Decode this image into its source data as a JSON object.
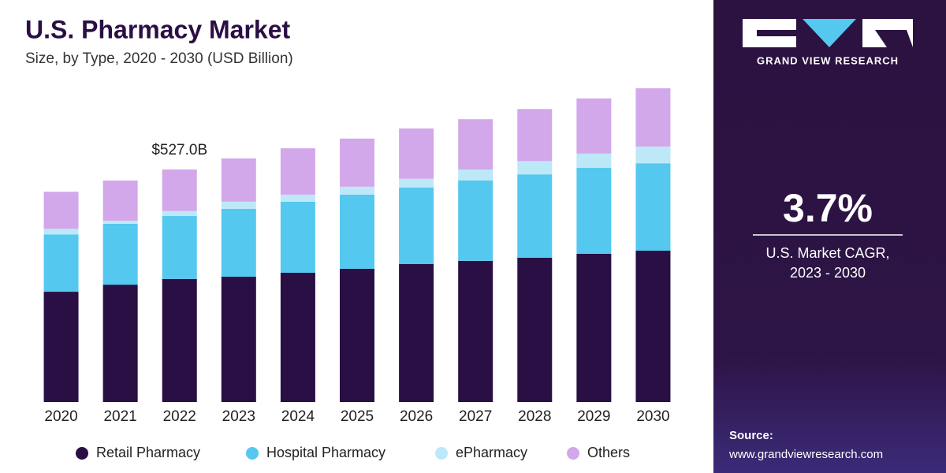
{
  "chart_data": {
    "type": "stacked-bar",
    "title": "U.S. Pharmacy Market",
    "subtitle": "Size, by Type, 2020 - 2030 (USD Billion)",
    "categories": [
      "2020",
      "2021",
      "2022",
      "2023",
      "2024",
      "2025",
      "2026",
      "2027",
      "2028",
      "2029",
      "2030"
    ],
    "series": [
      {
        "name": "Retail Pharmacy",
        "color": "#2a0f45",
        "values": [
          250,
          266,
          279,
          284,
          293,
          302,
          313,
          320,
          327,
          336,
          343
        ]
      },
      {
        "name": "Hospital Pharmacy",
        "color": "#55c8f0",
        "values": [
          130,
          138,
          143,
          154,
          161,
          168,
          173,
          182,
          189,
          195,
          198
        ]
      },
      {
        "name": "ePharmacy",
        "color": "#bde8f8",
        "values": [
          12.5,
          7,
          11,
          16,
          16,
          18,
          20,
          25,
          30,
          32,
          38
        ]
      },
      {
        "name": "Others",
        "color": "#d2a8ea",
        "values": [
          84,
          91,
          94,
          98,
          105,
          109,
          114,
          114,
          118,
          125,
          132
        ]
      }
    ],
    "annotation": {
      "label": "$527.0B",
      "value": 527,
      "category": "2022"
    },
    "legend": "bottom"
  },
  "sidebar": {
    "brand": "GRAND VIEW RESEARCH",
    "cagr": "3.7%",
    "cagr_label_1": "U.S. Market CAGR,",
    "cagr_label_2": "2023 - 2030",
    "source_label": "Source:",
    "source_url": "www.grandviewresearch.com"
  }
}
